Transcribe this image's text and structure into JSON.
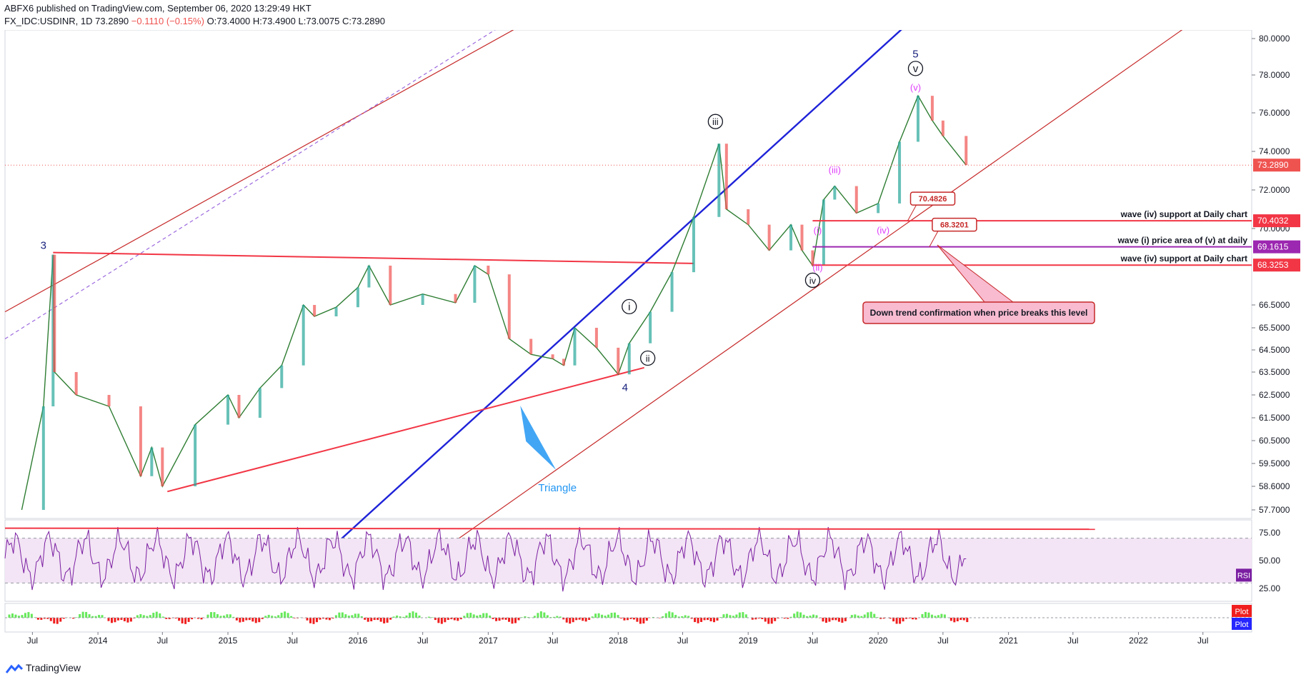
{
  "header": {
    "published": "ABFX6 published on TradingView.com, September 06, 2020 13:29:49 HKT",
    "symbol": "FX_IDC:USDINR, 1D",
    "last": "73.2890",
    "change": "−0.1110 (−0.15%)",
    "ohlc": "O:73.4000 H:73.4900 L:73.0075 C:73.2890"
  },
  "footer": {
    "brand": "TradingView"
  },
  "colors": {
    "up": "#26a69a",
    "down": "#ef5350",
    "red_line": "#f23645",
    "blue_line": "#1e22d8",
    "rsi": "#7b1fa2",
    "rsi_band": "#f3e5f5",
    "macd_up": "#66e95a",
    "macd_down": "#f01e1e"
  },
  "chart_data": {
    "type": "candlestick",
    "symbol": "FX_IDC:USDINR",
    "timeframe": "1D",
    "x_labels": [
      "Jul",
      "2014",
      "Jul",
      "2015",
      "Jul",
      "2016",
      "Jul",
      "2017",
      "Jul",
      "2018",
      "Jul",
      "2019",
      "Jul",
      "2020",
      "Jul",
      "2021",
      "Jul",
      "2022",
      "Jul"
    ],
    "x_label_dates": [
      "2013-07",
      "2014-01",
      "2014-07",
      "2015-01",
      "2015-07",
      "2016-01",
      "2016-07",
      "2017-01",
      "2017-07",
      "2018-01",
      "2018-07",
      "2019-01",
      "2019-07",
      "2020-01",
      "2020-07",
      "2021-01",
      "2021-07",
      "2022-01",
      "2022-07"
    ],
    "y_ticks": [
      "80.0000",
      "78.0000",
      "76.0000",
      "74.0000",
      "72.0000",
      "70.0000",
      "66.5000",
      "65.5000",
      "64.5000",
      "63.5000",
      "62.5000",
      "61.5000",
      "60.5000",
      "59.5000",
      "58.6000",
      "57.7000"
    ],
    "price_series": [
      {
        "date": "2013-06",
        "price": 57.7
      },
      {
        "date": "2013-08",
        "price": 62.0
      },
      {
        "date": "2013-08-28",
        "price": 68.8
      },
      {
        "date": "2013-09",
        "price": 63.5
      },
      {
        "date": "2013-11",
        "price": 62.5
      },
      {
        "date": "2014-02",
        "price": 62.0
      },
      {
        "date": "2014-05",
        "price": 59.0
      },
      {
        "date": "2014-06",
        "price": 60.2
      },
      {
        "date": "2014-07",
        "price": 58.6
      },
      {
        "date": "2014-10",
        "price": 61.2
      },
      {
        "date": "2015-01",
        "price": 62.5
      },
      {
        "date": "2015-02",
        "price": 61.5
      },
      {
        "date": "2015-04",
        "price": 62.8
      },
      {
        "date": "2015-06",
        "price": 63.8
      },
      {
        "date": "2015-08",
        "price": 66.5
      },
      {
        "date": "2015-09",
        "price": 66.0
      },
      {
        "date": "2015-11",
        "price": 66.4
      },
      {
        "date": "2016-01",
        "price": 67.3
      },
      {
        "date": "2016-02",
        "price": 68.3
      },
      {
        "date": "2016-04",
        "price": 66.5
      },
      {
        "date": "2016-07",
        "price": 67.0
      },
      {
        "date": "2016-10",
        "price": 66.6
      },
      {
        "date": "2016-11-24",
        "price": 68.3
      },
      {
        "date": "2017-01",
        "price": 67.9
      },
      {
        "date": "2017-03",
        "price": 65.0
      },
      {
        "date": "2017-05",
        "price": 64.3
      },
      {
        "date": "2017-07",
        "price": 64.1
      },
      {
        "date": "2017-08",
        "price": 63.8
      },
      {
        "date": "2017-09",
        "price": 65.5
      },
      {
        "date": "2017-11",
        "price": 64.6
      },
      {
        "date": "2018-01",
        "price": 63.4
      },
      {
        "date": "2018-02",
        "price": 64.8
      },
      {
        "date": "2018-04",
        "price": 66.2
      },
      {
        "date": "2018-06",
        "price": 68.0
      },
      {
        "date": "2018-08",
        "price": 70.6
      },
      {
        "date": "2018-10-11",
        "price": 74.4
      },
      {
        "date": "2018-11",
        "price": 71.0
      },
      {
        "date": "2019-01",
        "price": 70.2
      },
      {
        "date": "2019-03",
        "price": 69.0
      },
      {
        "date": "2019-05",
        "price": 70.2
      },
      {
        "date": "2019-06",
        "price": 69.0
      },
      {
        "date": "2019-07",
        "price": 68.3
      },
      {
        "date": "2019-08",
        "price": 71.5
      },
      {
        "date": "2019-09",
        "price": 72.2
      },
      {
        "date": "2019-11",
        "price": 70.8
      },
      {
        "date": "2020-01",
        "price": 71.3
      },
      {
        "date": "2020-03",
        "price": 74.5
      },
      {
        "date": "2020-04-22",
        "price": 76.9
      },
      {
        "date": "2020-06",
        "price": 75.6
      },
      {
        "date": "2020-07",
        "price": 74.8
      },
      {
        "date": "2020-09-04",
        "price": 73.289
      }
    ],
    "horizontal_levels": [
      {
        "value": 70.4032,
        "label": "wave (iv) support at Daily chart",
        "tag": "70.4032",
        "callout": "70.4826"
      },
      {
        "value": 69.1615,
        "label": "wave (i) price area of (v) at daily",
        "tag": "69.1615",
        "callout": "68.3201"
      },
      {
        "value": 68.3253,
        "label": "wave (iv) support at Daily chart",
        "tag": "68.3253"
      }
    ],
    "last_price": "73.2890",
    "wave_labels": [
      "3",
      "4",
      "5",
      "i",
      "ii",
      "iii",
      "iv",
      "v",
      "(i)",
      "(ii)",
      "(iii)",
      "(iv)",
      "(v)"
    ],
    "annotations": [
      "Triangle",
      "Down trend confirmation when price breaks this level"
    ],
    "indicators": [
      {
        "name": "RSI",
        "levels": [
          "75.00",
          "50.00",
          "25.00"
        ],
        "badge": "RSI"
      },
      {
        "name": "Plot",
        "badges": [
          "Plot",
          "Plot"
        ]
      }
    ]
  }
}
